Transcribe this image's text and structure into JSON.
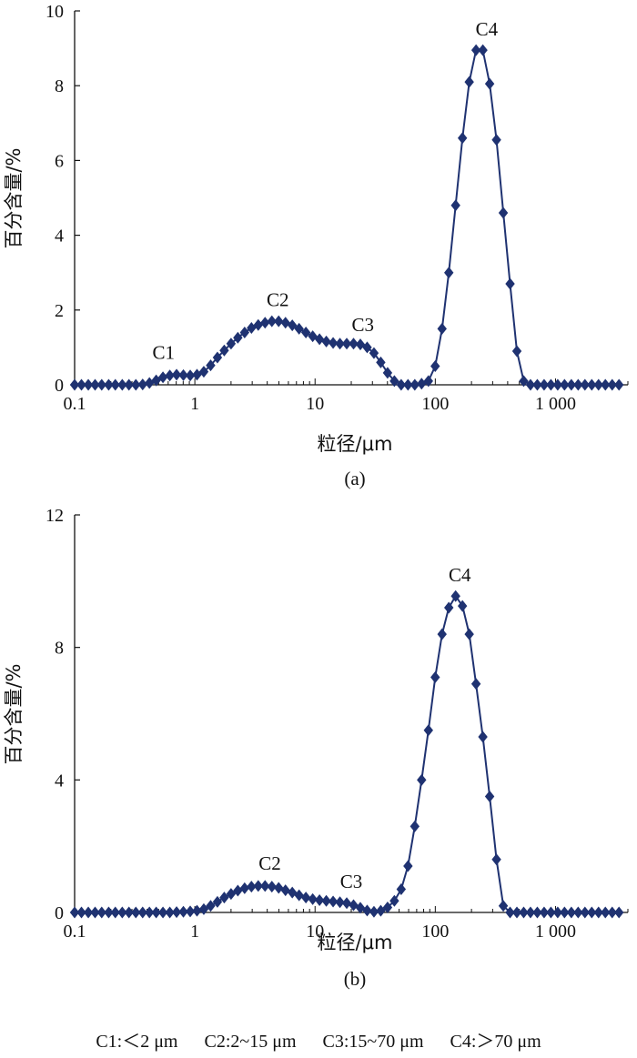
{
  "series_color": "#1f3271",
  "chart_data": [
    {
      "type": "line",
      "panel_label": "(a)",
      "xlabel": "粒径/μm",
      "ylabel": "百分含量/%",
      "xscale": "log",
      "xlim": [
        0.1,
        4000
      ],
      "ylim": [
        0,
        10
      ],
      "xticks": [
        0.1,
        1,
        10,
        100,
        1000
      ],
      "xtick_labels": [
        "0.1",
        "1",
        "10",
        "100",
        "1 000"
      ],
      "yticks": [
        0,
        2,
        4,
        6,
        8,
        10
      ],
      "ytick_labels": [
        "0",
        "2",
        "4",
        "6",
        "8",
        "10"
      ],
      "annotations": [
        {
          "text": "C1",
          "x": 0.55,
          "y": 0.3
        },
        {
          "text": "C2",
          "x": 4.9,
          "y": 1.72
        },
        {
          "text": "C3",
          "x": 25,
          "y": 1.05
        },
        {
          "text": "C4",
          "x": 268,
          "y": 8.95
        }
      ],
      "x": [
        0.1,
        0.114,
        0.13,
        0.148,
        0.168,
        0.192,
        0.218,
        0.249,
        0.283,
        0.323,
        0.368,
        0.419,
        0.477,
        0.543,
        0.619,
        0.705,
        0.803,
        0.915,
        1.042,
        1.187,
        1.353,
        1.541,
        1.756,
        2.0,
        2.278,
        2.595,
        2.957,
        3.368,
        3.837,
        4.372,
        4.981,
        5.674,
        6.464,
        7.364,
        8.39,
        9.558,
        10.89,
        12.4,
        14.13,
        16.1,
        18.34,
        20.89,
        23.8,
        27.12,
        30.89,
        35.19,
        40.09,
        45.67,
        52.03,
        59.28,
        67.53,
        76.93,
        87.64,
        99.85,
        113.8,
        129.6,
        147.6,
        168.2,
        191.6,
        218.3,
        248.7,
        283.3,
        322.7,
        367.7,
        418.9,
        477.2,
        543.6,
        619.3,
        705.6,
        803.8,
        915.7,
        1043,
        1188,
        1354,
        1543,
        1757,
        2002,
        2280,
        2598,
        2960,
        3372
      ],
      "y": [
        0,
        0,
        0,
        0,
        0,
        0,
        0,
        0,
        0,
        0,
        0.01,
        0.05,
        0.12,
        0.2,
        0.25,
        0.27,
        0.26,
        0.25,
        0.27,
        0.35,
        0.52,
        0.73,
        0.92,
        1.1,
        1.26,
        1.4,
        1.52,
        1.6,
        1.66,
        1.7,
        1.7,
        1.66,
        1.59,
        1.5,
        1.4,
        1.3,
        1.22,
        1.16,
        1.12,
        1.1,
        1.1,
        1.1,
        1.08,
        1.0,
        0.85,
        0.6,
        0.32,
        0.1,
        0.0,
        0.0,
        0.0,
        0.03,
        0.1,
        0.5,
        1.5,
        3.0,
        4.8,
        6.6,
        8.1,
        8.95,
        8.95,
        8.05,
        6.55,
        4.6,
        2.7,
        0.9,
        0.1,
        0,
        0,
        0,
        0,
        0,
        0,
        0,
        0,
        0,
        0,
        0,
        0,
        0,
        0
      ]
    },
    {
      "type": "line",
      "panel_label": "(b)",
      "xlabel": "粒径/μm",
      "ylabel": "百分含量/%",
      "xscale": "log",
      "xlim": [
        0.1,
        4000
      ],
      "ylim": [
        0,
        12
      ],
      "xticks": [
        0.1,
        1,
        10,
        100,
        1000
      ],
      "xtick_labels": [
        "0.1",
        "1",
        "10",
        "100",
        "1 000"
      ],
      "yticks": [
        0,
        4,
        8,
        12
      ],
      "ytick_labels": [
        "0",
        "4",
        "8",
        "12"
      ],
      "annotations": [
        {
          "text": "C2",
          "x": 4.2,
          "y": 0.85
        },
        {
          "text": "C3",
          "x": 20,
          "y": 0.3
        },
        {
          "text": "C4",
          "x": 160,
          "y": 9.55
        }
      ],
      "x": [
        0.1,
        0.114,
        0.13,
        0.148,
        0.168,
        0.192,
        0.218,
        0.249,
        0.283,
        0.323,
        0.368,
        0.419,
        0.477,
        0.543,
        0.619,
        0.705,
        0.803,
        0.915,
        1.042,
        1.187,
        1.353,
        1.541,
        1.756,
        2.0,
        2.278,
        2.595,
        2.957,
        3.368,
        3.837,
        4.372,
        4.981,
        5.674,
        6.464,
        7.364,
        8.39,
        9.558,
        10.89,
        12.4,
        14.13,
        16.1,
        18.34,
        20.89,
        23.8,
        27.12,
        30.89,
        35.19,
        40.09,
        45.67,
        52.03,
        59.28,
        67.53,
        76.93,
        87.64,
        99.85,
        113.8,
        129.6,
        147.6,
        168.2,
        191.6,
        218.3,
        248.7,
        283.3,
        322.7,
        367.7,
        418.9,
        477.2,
        543.6,
        619.3,
        705.6,
        803.8,
        915.7,
        1043,
        1188,
        1354,
        1543,
        1757,
        2002,
        2280,
        2598,
        2960,
        3372
      ],
      "y": [
        0,
        0,
        0,
        0,
        0,
        0,
        0,
        0,
        0,
        0,
        0,
        0,
        0,
        0,
        0,
        0.01,
        0.02,
        0.03,
        0.05,
        0.1,
        0.2,
        0.32,
        0.45,
        0.56,
        0.66,
        0.73,
        0.78,
        0.8,
        0.8,
        0.78,
        0.74,
        0.67,
        0.6,
        0.52,
        0.45,
        0.4,
        0.37,
        0.35,
        0.33,
        0.31,
        0.28,
        0.22,
        0.14,
        0.06,
        0.02,
        0.05,
        0.15,
        0.35,
        0.7,
        1.4,
        2.6,
        4.0,
        5.5,
        7.1,
        8.4,
        9.2,
        9.55,
        9.25,
        8.4,
        6.9,
        5.3,
        3.5,
        1.6,
        0.2,
        0,
        0,
        0,
        0,
        0,
        0,
        0,
        0,
        0,
        0,
        0,
        0,
        0,
        0,
        0,
        0,
        0
      ]
    }
  ],
  "legend": {
    "items": [
      "C1:＜2 μm",
      "C2:2~15 μm",
      "C3:15~70 μm",
      "C4:＞70 μm"
    ]
  }
}
